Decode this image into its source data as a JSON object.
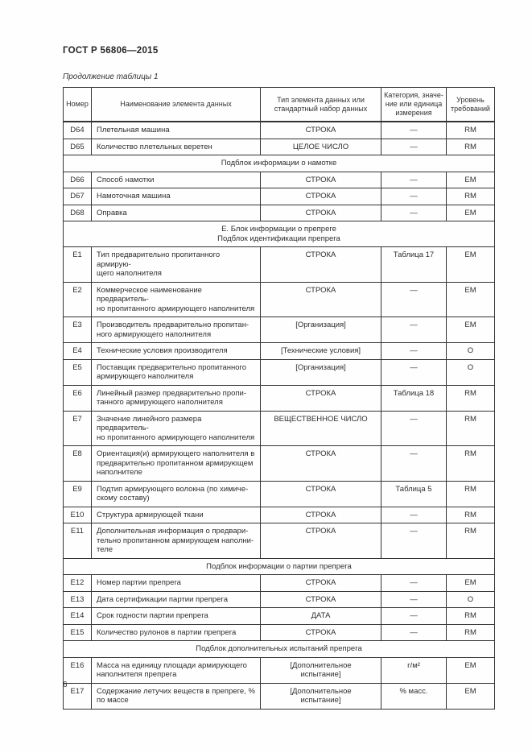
{
  "page": {
    "doc_title": "ГОСТ Р 56806—2015",
    "table_caption": "Продолжение таблицы 1",
    "page_number": "6"
  },
  "table": {
    "headers": [
      "Номер",
      "Наименование элемента данных",
      "Тип элемента данных или\nстандартный набор данных",
      "Категория, значе-\nние или единица\nизмерения",
      "Уровень\nтребований"
    ],
    "rows": [
      {
        "num": "D64",
        "name": "Плетельная машина",
        "type": "СТРОКА",
        "category": "—",
        "level": "RM"
      },
      {
        "num": "D65",
        "name": "Количество плетельных веретен",
        "type": "ЦЕЛОЕ ЧИСЛО",
        "category": "—",
        "level": "RM"
      },
      {
        "section": "Подблок информации о намотке"
      },
      {
        "num": "D66",
        "name": "Способ намотки",
        "type": "СТРОКА",
        "category": "—",
        "level": "EM"
      },
      {
        "num": "D67",
        "name": "Намоточная машина",
        "type": "СТРОКА",
        "category": "—",
        "level": "RM"
      },
      {
        "num": "D68",
        "name": "Оправка",
        "type": "СТРОКА",
        "category": "—",
        "level": "EM"
      },
      {
        "section": "Е. Блок информации о препреге\nПодблок идентификации препрега"
      },
      {
        "num": "E1",
        "name": "Тип предварительно пропитанного армирую-\nщего наполнителя",
        "type": "СТРОКА",
        "category": "Таблица 17",
        "level": "EM"
      },
      {
        "num": "E2",
        "name": "Коммерческое наименование предваритель-\nно пропитанного армирующего наполнителя",
        "type": "СТРОКА",
        "category": "—",
        "level": "EM"
      },
      {
        "num": "E3",
        "name": "Производитель предварительно пропитан-\nного армирующего наполнителя",
        "type": "[Организация]",
        "category": "—",
        "level": "EM"
      },
      {
        "num": "E4",
        "name": "Технические условия производителя",
        "type": "[Технические условия]",
        "category": "—",
        "level": "О"
      },
      {
        "num": "E5",
        "name": "Поставщик предварительно пропитанного\nармирующего наполнителя",
        "type": "[Организация]",
        "category": "—",
        "level": "О"
      },
      {
        "num": "E6",
        "name": "Линейный размер предварительно пропи-\nтанного армирующего наполнителя",
        "type": "СТРОКА",
        "category": "Таблица 18",
        "level": "RM"
      },
      {
        "num": "E7",
        "name": "Значение линейного размера предваритель-\nно пропитанного армирующего наполнителя",
        "type": "ВЕЩЕСТВЕННОЕ ЧИСЛО",
        "category": "—",
        "level": "RM"
      },
      {
        "num": "E8",
        "name": "Ориентация(и) армирующего наполнителя в\nпредварительно пропитанном армирующем\nнаполнителе",
        "type": "СТРОКА",
        "category": "—",
        "level": "RM"
      },
      {
        "num": "E9",
        "name": "Подтип армирующего волокна (по химиче-\nскому составу)",
        "type": "СТРОКА",
        "category": "Таблица 5",
        "level": "RM"
      },
      {
        "num": "E10",
        "name": "Структура армирующей ткани",
        "type": "СТРОКА",
        "category": "—",
        "level": "RM"
      },
      {
        "num": "E11",
        "name": "Дополнительная информация о предвари-\nтельно пропитанном армирующем наполни-\nтеле",
        "type": "СТРОКА",
        "category": "—",
        "level": "RM"
      },
      {
        "section": "Подблок информации о партии препрега"
      },
      {
        "num": "E12",
        "name": "Номер партии препрега",
        "type": "СТРОКА",
        "category": "—",
        "level": "EM"
      },
      {
        "num": "E13",
        "name": "Дата сертификации партии препрега",
        "type": "СТРОКА",
        "category": "—",
        "level": "О"
      },
      {
        "num": "E14",
        "name": "Срок годности партии препрега",
        "type": "ДАТА",
        "category": "—",
        "level": "RM"
      },
      {
        "num": "E15",
        "name": "Количество рулонов в партии препрега",
        "type": "СТРОКА",
        "category": "—",
        "level": "RM"
      },
      {
        "section": "Подблок дополнительных испытаний препрега"
      },
      {
        "num": "E16",
        "name": "Масса на единицу площади армирующего\nнаполнителя препрега",
        "type": "[Дополнительное\nиспытание]",
        "category": "г/м²",
        "level": "EM"
      },
      {
        "num": "E17",
        "name": "Содержание летучих веществ в препреге, %\nпо массе",
        "type": "[Дополнительное\nиспытание]",
        "category": "% масс.",
        "level": "EM"
      }
    ]
  }
}
